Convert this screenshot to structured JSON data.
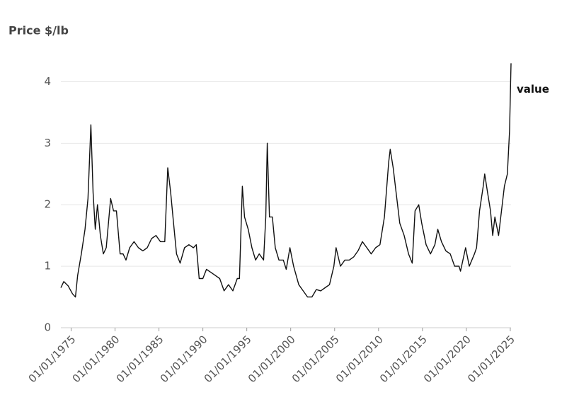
{
  "chart_data": {
    "type": "line",
    "y_label": "Price $/lb",
    "series": [
      {
        "name": "value",
        "color": "#111111",
        "x": [
          "1973-11",
          "1974-03",
          "1974-09",
          "1975-03",
          "1975-07",
          "1975-10",
          "1976-03",
          "1976-08",
          "1976-12",
          "1977-04",
          "1977-07",
          "1977-10",
          "1978-01",
          "1978-05",
          "1978-09",
          "1979-01",
          "1979-07",
          "1979-11",
          "1980-03",
          "1980-08",
          "1980-12",
          "1981-04",
          "1981-09",
          "1982-03",
          "1982-09",
          "1983-03",
          "1983-09",
          "1984-03",
          "1984-09",
          "1985-03",
          "1985-09",
          "1986-01",
          "1986-05",
          "1986-09",
          "1987-01",
          "1987-06",
          "1987-12",
          "1988-06",
          "1988-12",
          "1989-04",
          "1989-08",
          "1990-01",
          "1990-06",
          "1990-12",
          "1991-06",
          "1991-12",
          "1992-06",
          "1992-12",
          "1993-06",
          "1993-12",
          "1994-03",
          "1994-07",
          "1994-10",
          "1995-03",
          "1995-08",
          "1996-01",
          "1996-06",
          "1996-12",
          "1997-03",
          "1997-05",
          "1997-08",
          "1997-12",
          "1998-04",
          "1998-09",
          "1999-03",
          "1999-07",
          "1999-12",
          "2000-05",
          "2000-12",
          "2001-06",
          "2001-12",
          "2002-06",
          "2002-12",
          "2003-06",
          "2003-12",
          "2004-06",
          "2004-12",
          "2005-03",
          "2005-09",
          "2006-03",
          "2006-09",
          "2007-03",
          "2007-09",
          "2008-03",
          "2008-09",
          "2009-03",
          "2009-09",
          "2010-03",
          "2010-09",
          "2011-03",
          "2011-05",
          "2011-09",
          "2012-01",
          "2012-06",
          "2012-12",
          "2013-06",
          "2013-11",
          "2014-03",
          "2014-08",
          "2014-12",
          "2015-06",
          "2015-12",
          "2016-06",
          "2016-10",
          "2017-03",
          "2017-09",
          "2018-03",
          "2018-09",
          "2019-03",
          "2019-05",
          "2019-12",
          "2020-05",
          "2020-12",
          "2021-03",
          "2021-07",
          "2021-12",
          "2022-02",
          "2022-06",
          "2022-10",
          "2023-01",
          "2023-04",
          "2023-09",
          "2024-01",
          "2024-05",
          "2024-09",
          "2024-12",
          "2025-02"
        ],
        "values": [
          0.65,
          0.75,
          0.68,
          0.55,
          0.5,
          0.85,
          1.2,
          1.6,
          2.1,
          3.3,
          2.2,
          1.6,
          2.0,
          1.5,
          1.2,
          1.3,
          2.1,
          1.9,
          1.9,
          1.2,
          1.2,
          1.1,
          1.3,
          1.4,
          1.3,
          1.25,
          1.3,
          1.45,
          1.5,
          1.4,
          1.4,
          2.6,
          2.2,
          1.7,
          1.2,
          1.05,
          1.3,
          1.35,
          1.3,
          1.35,
          0.8,
          0.8,
          0.95,
          0.9,
          0.85,
          0.8,
          0.6,
          0.7,
          0.6,
          0.8,
          0.8,
          2.3,
          1.8,
          1.6,
          1.3,
          1.1,
          1.2,
          1.1,
          1.8,
          3.0,
          1.8,
          1.8,
          1.3,
          1.1,
          1.1,
          0.95,
          1.3,
          1.0,
          0.7,
          0.6,
          0.5,
          0.5,
          0.62,
          0.6,
          0.65,
          0.7,
          1.0,
          1.3,
          1.0,
          1.1,
          1.1,
          1.15,
          1.25,
          1.4,
          1.3,
          1.2,
          1.3,
          1.35,
          1.8,
          2.7,
          2.9,
          2.6,
          2.2,
          1.7,
          1.5,
          1.2,
          1.05,
          1.9,
          2.0,
          1.7,
          1.35,
          1.2,
          1.35,
          1.6,
          1.4,
          1.25,
          1.2,
          1.0,
          1.0,
          0.92,
          1.3,
          1.0,
          1.2,
          1.3,
          1.9,
          2.3,
          2.5,
          2.2,
          1.9,
          1.5,
          1.8,
          1.5,
          1.9,
          2.3,
          2.5,
          3.2,
          4.3
        ]
      }
    ],
    "xlim": [
      "1973-11-01",
      "2025-02-01"
    ],
    "xticks": [
      {
        "value": "1975-01-01",
        "label": "01/01/1975"
      },
      {
        "value": "1980-01-01",
        "label": "01/01/1980"
      },
      {
        "value": "1985-01-01",
        "label": "01/01/1985"
      },
      {
        "value": "1990-01-01",
        "label": "01/01/1990"
      },
      {
        "value": "1995-01-01",
        "label": "01/01/1995"
      },
      {
        "value": "2000-01-01",
        "label": "01/01/2000"
      },
      {
        "value": "2005-01-01",
        "label": "01/01/2005"
      },
      {
        "value": "2010-01-01",
        "label": "01/01/2010"
      },
      {
        "value": "2015-01-01",
        "label": "01/01/2015"
      },
      {
        "value": "2020-01-01",
        "label": "01/01/2020"
      },
      {
        "value": "2025-01-01",
        "label": "01/01/2025"
      }
    ],
    "ylim": [
      0,
      4.5
    ],
    "yticks": [
      0,
      1,
      2,
      3,
      4
    ],
    "grid": true
  }
}
